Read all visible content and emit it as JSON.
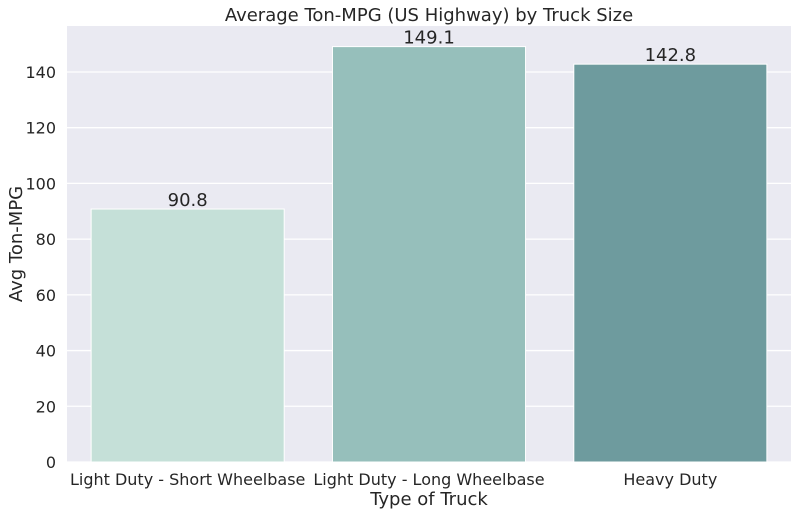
{
  "chart_data": {
    "type": "bar",
    "title": "Average Ton-MPG (US Highway) by Truck Size",
    "xlabel": "Type of Truck",
    "ylabel": "Avg Ton-MPG",
    "categories": [
      "Light Duty - Short Wheelbase",
      "Light Duty - Long Wheelbase",
      "Heavy Duty"
    ],
    "values": [
      90.8,
      149.1,
      142.8
    ],
    "value_labels": [
      "90.8",
      "149.1",
      "142.8"
    ],
    "ylim": [
      0,
      156.5
    ],
    "yticks": [
      0,
      20,
      40,
      60,
      80,
      100,
      120,
      140
    ],
    "ytick_labels": [
      "0",
      "20",
      "40",
      "60",
      "80",
      "100",
      "120",
      "140"
    ],
    "grid": true,
    "legend": "none",
    "colors": {
      "plot_background": "#eaeaf2",
      "grid": "#ffffff",
      "bars": [
        "#c5e0d8",
        "#96bfbb",
        "#6e9b9e"
      ]
    }
  }
}
